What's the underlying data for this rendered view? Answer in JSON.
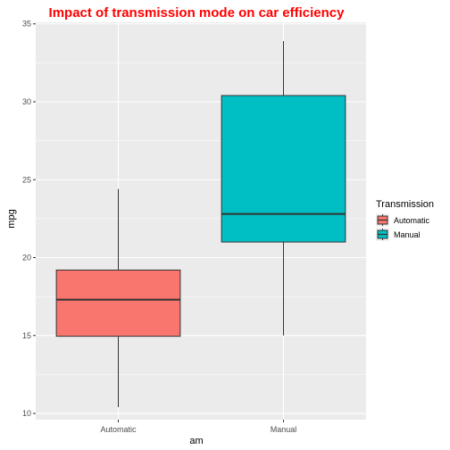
{
  "chart_data": {
    "type": "boxplot",
    "title": "Impact of transmission mode on car efficiency",
    "xlabel": "am",
    "ylabel": "mpg",
    "categories": [
      "Automatic",
      "Manual"
    ],
    "series": [
      {
        "name": "Automatic",
        "color": "#F8766D",
        "min": 10.4,
        "q1": 14.95,
        "median": 17.3,
        "q3": 19.2,
        "max": 24.4
      },
      {
        "name": "Manual",
        "color": "#00BFC4",
        "min": 15.0,
        "q1": 21.0,
        "median": 22.8,
        "q3": 30.4,
        "max": 33.9
      }
    ],
    "ylim": [
      9.6,
      35.1
    ],
    "yticks": [
      10,
      15,
      20,
      25,
      30,
      35
    ],
    "grid": true,
    "panel_background": "#EBEBEB",
    "legend": {
      "title": "Transmission",
      "position": "right",
      "entries": [
        "Automatic",
        "Manual"
      ]
    }
  }
}
